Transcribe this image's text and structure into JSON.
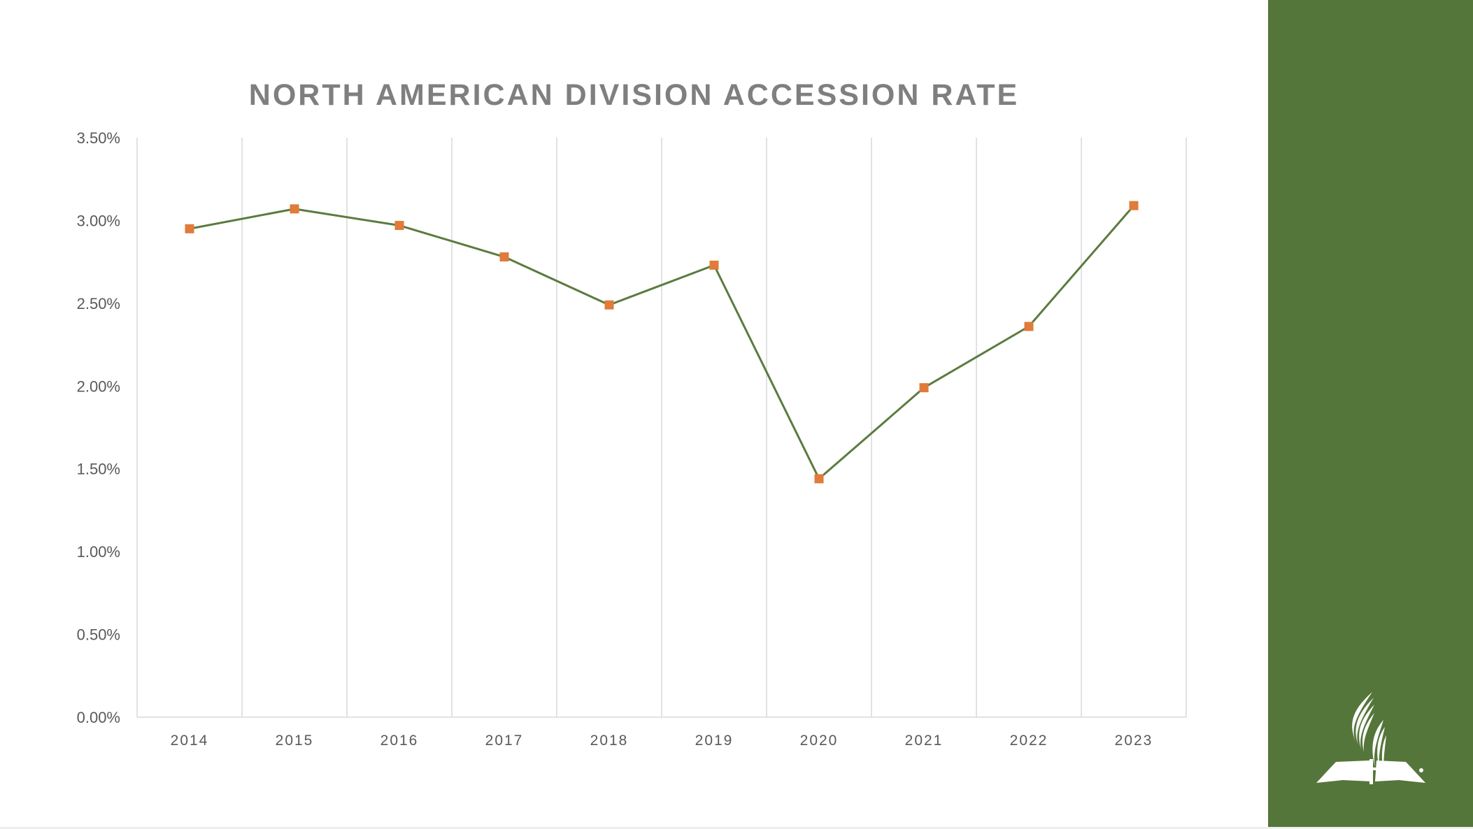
{
  "chart_data": {
    "type": "line",
    "title": "NORTH AMERICAN DIVISION ACCESSION RATE",
    "xlabel": "",
    "ylabel": "",
    "categories": [
      "2014",
      "2015",
      "2016",
      "2017",
      "2018",
      "2019",
      "2020",
      "2021",
      "2022",
      "2023"
    ],
    "series": [
      {
        "values": [
          2.95,
          3.07,
          2.97,
          2.78,
          2.49,
          2.73,
          1.44,
          1.99,
          2.36,
          3.09
        ]
      }
    ],
    "ylim": [
      0,
      3.5
    ],
    "y_ticks": [
      "0.00%",
      "0.50%",
      "1.00%",
      "1.50%",
      "2.00%",
      "2.50%",
      "3.00%",
      "3.50%"
    ],
    "y_tick_values": [
      0,
      0.5,
      1,
      1.5,
      2,
      2.5,
      3,
      3.5
    ],
    "grid": "vertical",
    "legend": "none",
    "colors": {
      "line": "#5b7b3f",
      "marker": "#e07b39",
      "panel": "#55763a",
      "grid": "#d9d9d9",
      "text": "#7f7f7f"
    }
  },
  "branding": {
    "logo": "Seventh-day Adventist Church logo",
    "logo_icon": "flame-book-logo-icon"
  }
}
